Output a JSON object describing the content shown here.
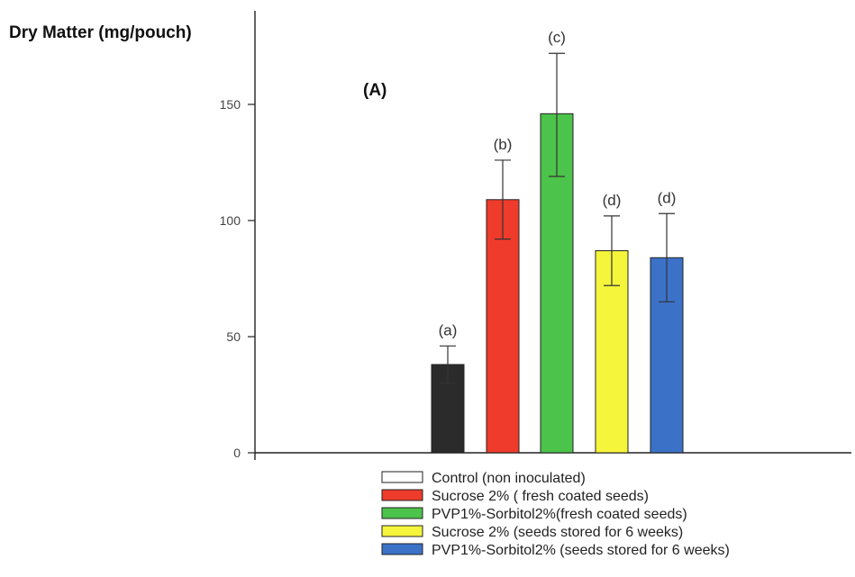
{
  "chart_data": {
    "type": "bar",
    "title": "",
    "panel_label": "(A)",
    "ylabel": "Dry Matter (mg/pouch)",
    "xlabel": "",
    "ylim": [
      0,
      175
    ],
    "yticks": [
      0,
      50,
      100,
      150
    ],
    "grid": false,
    "legend_position": "bottom",
    "categories": [
      "Control (non inoculated)",
      "Sucrose 2% ( fresh coated seeds)",
      "PVP1%-Sorbitol2%(fresh coated seeds)",
      "Sucrose 2% (seeds stored for 6 weeks)",
      "PVP1%-Sorbitol2% (seeds stored for 6 weeks)"
    ],
    "values": [
      38,
      109,
      146,
      87,
      84
    ],
    "errors_low": [
      30,
      92,
      119,
      72,
      65
    ],
    "errors_high": [
      46,
      126,
      172,
      102,
      103
    ],
    "annotations": [
      "(a)",
      "(b)",
      "(c)",
      "(d)",
      "(d)"
    ],
    "colors": [
      "#2b2b2b",
      "#ee3b2b",
      "#4cc34a",
      "#f5f53c",
      "#3b72c8"
    ],
    "legend": [
      {
        "label": "Control (non inoculated)",
        "fill": "#ffffff"
      },
      {
        "label": "Sucrose 2% ( fresh coated seeds)",
        "fill": "#ee3b2b"
      },
      {
        "label": "PVP1%-Sorbitol2%(fresh coated seeds)",
        "fill": "#4cc34a"
      },
      {
        "label": "Sucrose 2% (seeds stored for 6 weeks)",
        "fill": "#f5f53c"
      },
      {
        "label": "PVP1%-Sorbitol2% (seeds stored for 6 weeks)",
        "fill": "#3b72c8"
      }
    ]
  }
}
